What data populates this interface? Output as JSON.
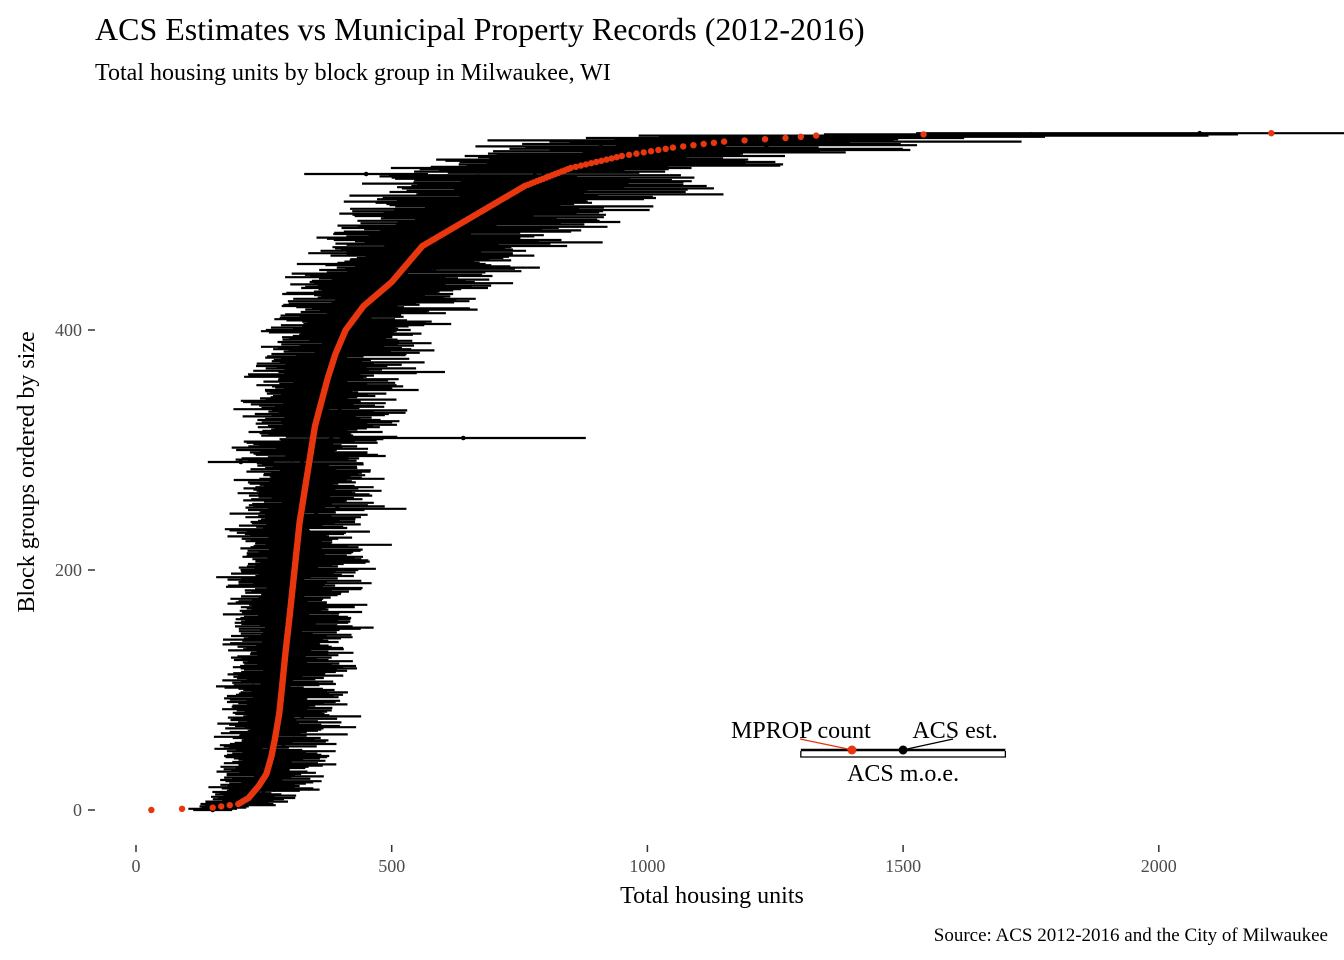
{
  "title": "ACS Estimates vs Municipal Property Records (2012-2016)",
  "subtitle": "Total housing units by block group in Milwaukee, WI",
  "caption": "Source: ACS 2012-2016 and the City of Milwaukee",
  "colors": {
    "mprop": "#e8360f",
    "acs": "#000000",
    "tick_label": "#4d4d4d"
  },
  "chart_data": {
    "type": "scatter",
    "xlabel": "Total housing units",
    "ylabel": "Block groups ordered by size",
    "xlim": [
      -50,
      2250
    ],
    "ylim": [
      -20,
      565
    ],
    "x_ticks": [
      0,
      500,
      1000,
      1500,
      2000
    ],
    "x_tick_labels": [
      "0",
      "500",
      "1000",
      "1500",
      "2000"
    ],
    "y_ticks": [
      0,
      200,
      400
    ],
    "y_tick_labels": [
      "0",
      "200",
      "400"
    ],
    "grid": false,
    "n_block_groups": 565,
    "mprop_quantile_curve": {
      "rank": [
        0,
        2,
        5,
        10,
        20,
        30,
        45,
        60,
        80,
        100,
        130,
        160,
        200,
        240,
        280,
        320,
        360,
        380,
        400,
        420,
        440,
        460,
        470,
        480,
        500,
        520,
        535,
        545,
        552,
        557,
        560,
        562,
        563,
        564
      ],
      "units": [
        30,
        150,
        200,
        220,
        240,
        255,
        265,
        272,
        280,
        285,
        292,
        300,
        310,
        320,
        335,
        350,
        375,
        390,
        410,
        445,
        500,
        540,
        560,
        600,
        680,
        760,
        850,
        950,
        1050,
        1150,
        1270,
        1330,
        1540,
        2220
      ]
    },
    "acs_moe_ratio": 0.3,
    "notable_acs_estimates": [
      {
        "rank": 564,
        "units": 2080
      },
      {
        "rank": 563,
        "units": 1750
      },
      {
        "rank": 562,
        "units": 1540
      },
      {
        "rank": 561,
        "units": 1400
      },
      {
        "rank": 530,
        "units": 450
      },
      {
        "rank": 310,
        "units": 640
      },
      {
        "rank": 290,
        "units": 205
      }
    ],
    "legend": {
      "placement": "bottom-right",
      "mprop_label": "MPROP count",
      "acs_label": "ACS est.",
      "moe_label": "ACS m.o.e.",
      "mprop_value": 1400,
      "acs_value": 1500,
      "moe_range": [
        1300,
        1700
      ],
      "rank": 50
    }
  }
}
